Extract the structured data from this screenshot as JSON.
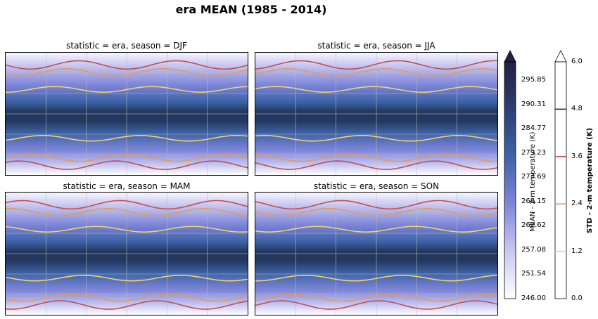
{
  "figure": {
    "title": "era MEAN (1985 - 2014)"
  },
  "panels": [
    {
      "title": "statistic = era, season = DJF"
    },
    {
      "title": "statistic = era, season = JJA"
    },
    {
      "title": "statistic = era, season = MAM"
    },
    {
      "title": "statistic = era, season = SON"
    }
  ],
  "colorbar_mean": {
    "label": "MEAN - 2-m temperature (K)",
    "ticks": [
      "295.85",
      "290.31",
      "284.77",
      "279.23",
      "273.69",
      "268.15",
      "262.62",
      "257.08",
      "251.54",
      "246.00"
    ],
    "range": [
      246.0,
      301.4
    ],
    "extend": "max",
    "colors": [
      "#ffffff",
      "#c9c8f2",
      "#7f86d8",
      "#3d63a8",
      "#2c3f73",
      "#241f44"
    ]
  },
  "colorbar_std": {
    "label": "STD - 2-m temperature (K)",
    "ticks": [
      "6.0",
      "4.8",
      "3.6",
      "2.4",
      "1.2",
      "0.0"
    ],
    "range": [
      0.0,
      6.0
    ],
    "extend": "max",
    "contour_levels": [
      1.2,
      2.4,
      3.6,
      4.8
    ],
    "contour_colors": [
      "#f2d16b",
      "#e39a5a",
      "#c2514c",
      "#4a1c14"
    ]
  }
}
